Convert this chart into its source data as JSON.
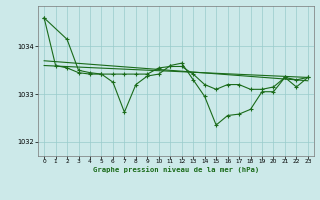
{
  "background_color": "#cce9e9",
  "grid_color": "#99cccc",
  "line_color": "#1a6b1a",
  "title": "Graphe pression niveau de la mer (hPa)",
  "xlim": [
    -0.5,
    23.5
  ],
  "ylim": [
    1031.7,
    1034.85
  ],
  "yticks": [
    1032,
    1033,
    1034
  ],
  "xticks": [
    0,
    1,
    2,
    3,
    4,
    5,
    6,
    7,
    8,
    9,
    10,
    11,
    12,
    13,
    14,
    15,
    16,
    17,
    18,
    19,
    20,
    21,
    22,
    23
  ],
  "series1_x": [
    0,
    1,
    2,
    3,
    4,
    5,
    6,
    7,
    8,
    9,
    10,
    11,
    12,
    13,
    14,
    15,
    16,
    17,
    18,
    19,
    20,
    21,
    22,
    23
  ],
  "series1_y": [
    1034.6,
    1033.6,
    1033.55,
    1033.45,
    1033.42,
    1033.42,
    1033.42,
    1033.42,
    1033.42,
    1033.42,
    1033.55,
    1033.58,
    1033.58,
    1033.42,
    1033.2,
    1033.1,
    1033.2,
    1033.2,
    1033.1,
    1033.1,
    1033.15,
    1033.35,
    1033.3,
    1033.35
  ],
  "series2_x": [
    0,
    2,
    3,
    4,
    5,
    6,
    7,
    8,
    9,
    10,
    11,
    12,
    13,
    14,
    15,
    16,
    17,
    18,
    19,
    20,
    21,
    22,
    23
  ],
  "series2_y": [
    1034.6,
    1034.15,
    1033.5,
    1033.45,
    1033.42,
    1033.25,
    1032.62,
    1033.2,
    1033.38,
    1033.42,
    1033.6,
    1033.65,
    1033.3,
    1032.95,
    1032.35,
    1032.55,
    1032.58,
    1032.68,
    1033.05,
    1033.05,
    1033.35,
    1033.15,
    1033.35
  ],
  "trend1_x": [
    0,
    23
  ],
  "trend1_y": [
    1033.6,
    1033.35
  ],
  "trend2_x": [
    0,
    23
  ],
  "trend2_y": [
    1033.7,
    1033.28
  ]
}
